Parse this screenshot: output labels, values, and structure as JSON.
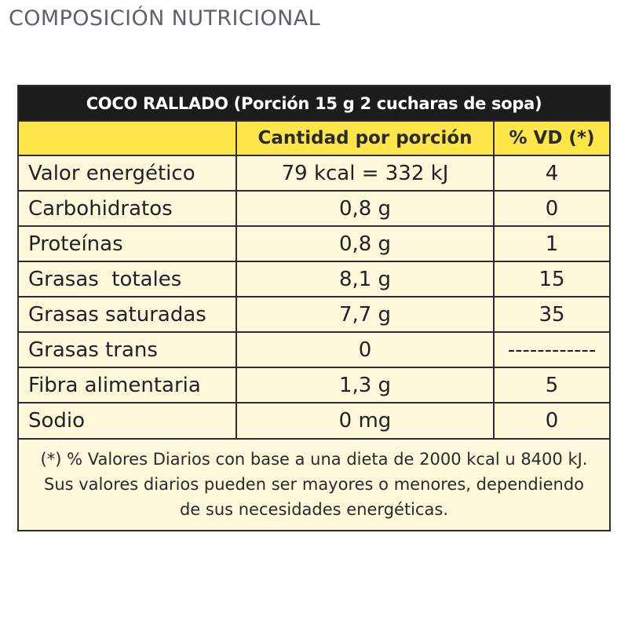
{
  "page": {
    "title": "COMPOSICIÓN NUTRICIONAL"
  },
  "table": {
    "product_heading": "COCO RALLADO (Porción 15 g 2 cucharas de sopa)",
    "columns": {
      "nutrient": "",
      "amount": "Cantidad por porción",
      "dv": "% VD (*)"
    },
    "rows": [
      {
        "name": "Valor energético",
        "amount": "79 kcal = 332 kJ",
        "dv": "4"
      },
      {
        "name": "Carbohidratos",
        "amount": "0,8 g",
        "dv": "0"
      },
      {
        "name": "Proteínas",
        "amount": "0,8 g",
        "dv": "1"
      },
      {
        "name": "Grasas  totales",
        "amount": "8,1 g",
        "dv": "15"
      },
      {
        "name": "Grasas saturadas",
        "amount": "7,7 g",
        "dv": "35"
      },
      {
        "name": "Grasas trans",
        "amount": "0",
        "dv": "------------"
      },
      {
        "name": "Fibra alimentaria",
        "amount": "1,3 g",
        "dv": "5"
      },
      {
        "name": "Sodio",
        "amount": "0 mg",
        "dv": "0"
      }
    ],
    "footnote": "(*) % Valores Diarios con base a una dieta de 2000 kcal u 8400 kJ. Sus valores diarios pueden ser mayores o menores, dependiendo de sus necesidades energéticas."
  },
  "colors": {
    "header_bar": "#1c1c1c",
    "column_header": "#fde54a",
    "table_background": "#fdf8dc",
    "title_text": "#5e6266"
  }
}
